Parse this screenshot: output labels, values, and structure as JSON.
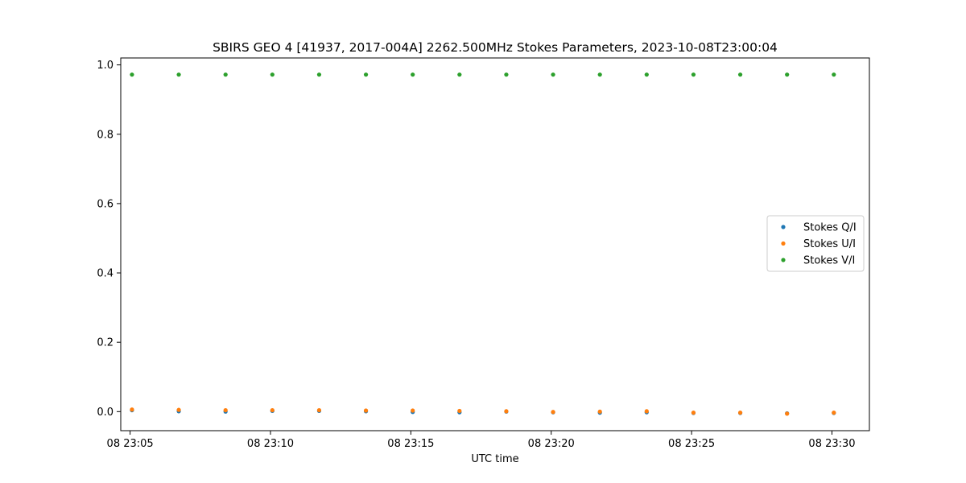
{
  "chart_data": {
    "type": "scatter",
    "title": "SBIRS GEO 4 [41937, 2017-004A] 2262.500MHz Stokes Parameters, 2023-10-08T23:00:04",
    "xlabel": "UTC time",
    "ylabel": "",
    "x_tick_labels": [
      "08 23:05",
      "08 23:10",
      "08 23:15",
      "08 23:20",
      "08 23:25",
      "08 23:30"
    ],
    "x_tick_minutes": [
      5,
      10,
      15,
      20,
      25,
      30
    ],
    "y_ticks": [
      0.0,
      0.2,
      0.4,
      0.6,
      0.8,
      1.0
    ],
    "y_tick_labels": [
      "0.0",
      "0.2",
      "0.4",
      "0.6",
      "0.8",
      "1.0"
    ],
    "xlim": [
      "2023-10-08T23:04:40",
      "2023-10-08T23:31:20"
    ],
    "ylim": [
      -0.055,
      1.02
    ],
    "grid": false,
    "legend_position": "center-right",
    "x": [
      "2023-10-08T23:05:04",
      "2023-10-08T23:06:44",
      "2023-10-08T23:08:24",
      "2023-10-08T23:10:04",
      "2023-10-08T23:11:44",
      "2023-10-08T23:13:24",
      "2023-10-08T23:15:04",
      "2023-10-08T23:16:44",
      "2023-10-08T23:18:24",
      "2023-10-08T23:20:04",
      "2023-10-08T23:21:44",
      "2023-10-08T23:23:24",
      "2023-10-08T23:25:04",
      "2023-10-08T23:26:44",
      "2023-10-08T23:28:24",
      "2023-10-08T23:30:04"
    ],
    "series": [
      {
        "name": "Stokes Q/I",
        "color": "#1f77b4",
        "values": [
          0.004,
          0.001,
          0.0,
          0.002,
          0.002,
          0.001,
          -0.001,
          -0.002,
          0.0,
          -0.002,
          -0.003,
          -0.002,
          -0.004,
          -0.004,
          -0.005,
          -0.004
        ]
      },
      {
        "name": "Stokes U/I",
        "color": "#ff7f0e",
        "values": [
          0.006,
          0.005,
          0.004,
          0.004,
          0.004,
          0.003,
          0.003,
          0.002,
          0.001,
          -0.001,
          0.0,
          0.001,
          -0.003,
          -0.003,
          -0.006,
          -0.003
        ]
      },
      {
        "name": "Stokes V/I",
        "color": "#2ca02c",
        "values": [
          0.972,
          0.972,
          0.972,
          0.972,
          0.972,
          0.972,
          0.972,
          0.972,
          0.972,
          0.972,
          0.972,
          0.972,
          0.972,
          0.972,
          0.972,
          0.972
        ]
      }
    ]
  }
}
